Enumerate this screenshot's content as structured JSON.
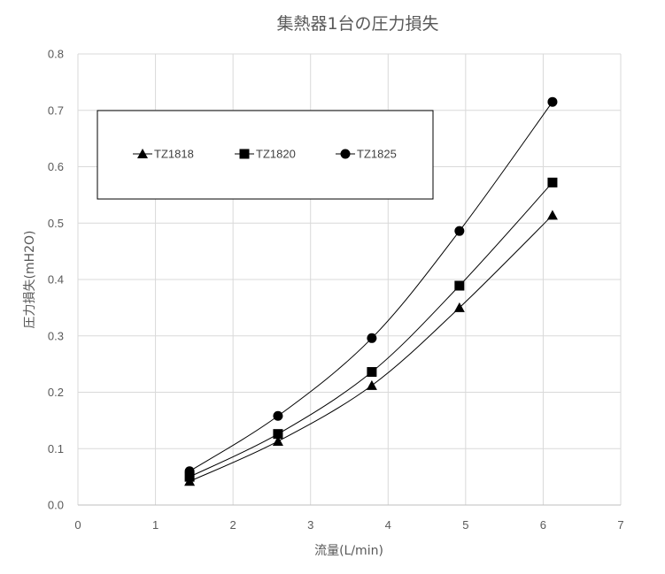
{
  "chart_data": {
    "type": "scatter",
    "title": "集熱器1台の圧力損失",
    "xlabel": "流量(L/min)",
    "ylabel": "圧力損失(mH2O)",
    "xlim": [
      0,
      7
    ],
    "ylim": [
      0,
      0.8
    ],
    "x_ticks": [
      "0",
      "1",
      "2",
      "3",
      "4",
      "5",
      "6",
      "7"
    ],
    "y_ticks": [
      "0.0",
      "0.1",
      "0.2",
      "0.3",
      "0.4",
      "0.5",
      "0.6",
      "0.7",
      "0.8"
    ],
    "grid": true,
    "legend_position": "top-left",
    "smooth_lines": true,
    "series": [
      {
        "name": "TZ1818",
        "marker": "triangle",
        "x": [
          1.44,
          2.58,
          3.79,
          4.92,
          6.12
        ],
        "y": [
          0.042,
          0.113,
          0.212,
          0.35,
          0.514
        ]
      },
      {
        "name": "TZ1820",
        "marker": "square",
        "x": [
          1.44,
          2.58,
          3.79,
          4.92,
          6.12
        ],
        "y": [
          0.05,
          0.126,
          0.236,
          0.389,
          0.572
        ]
      },
      {
        "name": "TZ1825",
        "marker": "circle",
        "x": [
          1.44,
          2.58,
          3.79,
          4.92,
          6.12
        ],
        "y": [
          0.06,
          0.158,
          0.296,
          0.486,
          0.715
        ]
      }
    ]
  }
}
